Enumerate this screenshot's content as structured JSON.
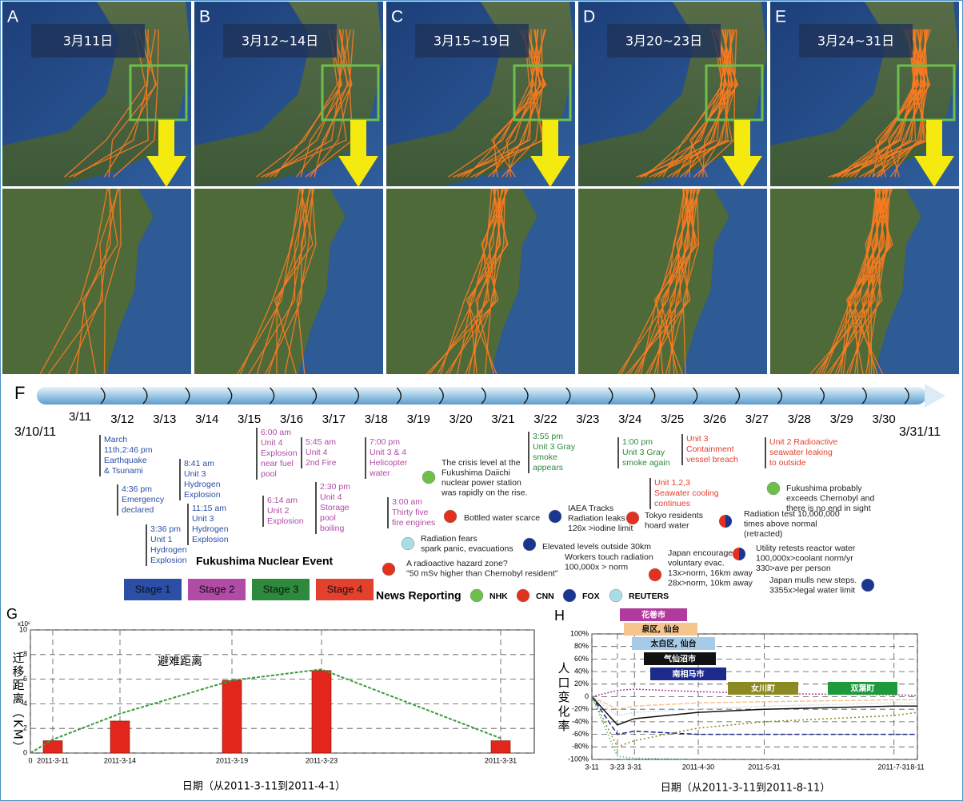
{
  "panels": [
    {
      "letter": "A",
      "date": "3月11日"
    },
    {
      "letter": "B",
      "date": "3月12~14日"
    },
    {
      "letter": "C",
      "date": "3月15~19日"
    },
    {
      "letter": "D",
      "date": "3月20~23日"
    },
    {
      "letter": "E",
      "date": "3月24~31日"
    }
  ],
  "timeline": {
    "letter": "F",
    "start": "3/10/11",
    "end": "3/31/11",
    "dates": [
      "3/11",
      "3/12",
      "3/13",
      "3/14",
      "3/15",
      "3/16",
      "3/17",
      "3/18",
      "3/19",
      "3/20",
      "3/21",
      "3/22",
      "3/23",
      "3/24",
      "3/25",
      "3/26",
      "3/27",
      "3/28",
      "3/29",
      "3/30"
    ],
    "title": "Fukushima Nuclear Event",
    "stages": [
      "Stage 1",
      "Stage 2",
      "Stage 3",
      "Stage 4"
    ],
    "stage_colors": [
      "#2b4ea6",
      "#b14ba6",
      "#2d8a3c",
      "#e4402e"
    ],
    "events": [
      {
        "stage": 0,
        "lines": [
          "March",
          "11th,2:46 pm",
          "Earthquake",
          "& Tsunami"
        ]
      },
      {
        "stage": 0,
        "lines": [
          "4:36 pm",
          "Emergency",
          "declared"
        ]
      },
      {
        "stage": 0,
        "lines": [
          "3:36 pm",
          "Unit 1",
          "Hydrogen",
          "Explosion"
        ]
      },
      {
        "stage": 0,
        "lines": [
          "8:41 am",
          "Unit 3",
          "Hydrogen",
          "Explosion"
        ]
      },
      {
        "stage": 0,
        "lines": [
          "11:15 am",
          "Unit 3",
          "Hydrogen",
          "Explosion"
        ]
      },
      {
        "stage": 1,
        "lines": [
          "6:00 am",
          "Unit 4",
          "Explosion",
          "near fuel",
          "pool"
        ]
      },
      {
        "stage": 1,
        "lines": [
          "6:14 am",
          "Unit 2",
          "Explosion"
        ]
      },
      {
        "stage": 1,
        "lines": [
          "5:45 am",
          "Unit 4",
          "2nd Fire"
        ]
      },
      {
        "stage": 1,
        "lines": [
          "2:30 pm",
          "Unit 4",
          "Storage",
          "pool",
          "boiling"
        ]
      },
      {
        "stage": 1,
        "lines": [
          "7:00 pm",
          "Unit 3 & 4",
          "Helicopter",
          "water"
        ]
      },
      {
        "stage": 1,
        "lines": [
          "3:00 am",
          "Thirty five",
          "fire engines"
        ]
      },
      {
        "stage": 2,
        "lines": [
          "3:55 pm",
          "Unit 3 Gray",
          "smoke",
          "appears"
        ]
      },
      {
        "stage": 2,
        "lines": [
          "1:00 pm",
          "Unit 3 Gray",
          "smoke again"
        ]
      },
      {
        "stage": 3,
        "lines": [
          "Unit 3",
          "Containment",
          "vessel breach"
        ]
      },
      {
        "stage": 3,
        "lines": [
          "Unit 2 Radioactive",
          "seawater leaking",
          "to outside"
        ]
      },
      {
        "stage": 3,
        "lines": [
          "Unit 1,2,3",
          "Seawater cooling",
          "continues"
        ]
      }
    ],
    "news_title": "News Reporting",
    "sources": [
      {
        "name": "NHK",
        "color": "#6cc04a"
      },
      {
        "name": "CNN",
        "color": "#e2321f"
      },
      {
        "name": "FOX",
        "color": "#1a3690"
      },
      {
        "name": "REUTERS",
        "color": "#a9dde6"
      }
    ],
    "news": [
      {
        "colors": [
          "#6cc04a"
        ],
        "lines": [
          "The crisis level at the",
          "Fukushima Daiichi",
          "nuclear power station",
          "was rapidly on the rise."
        ]
      },
      {
        "colors": [
          "#e2321f"
        ],
        "lines": [
          "Bottled water scarce"
        ]
      },
      {
        "colors": [
          "#1a3690"
        ],
        "lines": [
          "IAEA Tracks",
          "Radiation leaks",
          "126x >iodine limit"
        ]
      },
      {
        "colors": [
          "#e2321f"
        ],
        "lines": [
          "Tokyo residents",
          "hoard water"
        ]
      },
      {
        "colors": [
          "#6cc04a"
        ],
        "lines": [
          "Fukushima probably",
          "exceeds Chernobyl and",
          "there is no end in sight"
        ]
      },
      {
        "colors": [
          "#e2321f",
          "#1a3690"
        ],
        "lines": [
          "Radiation test 10,000,000",
          "times above normal",
          "(retracted)"
        ]
      },
      {
        "colors": [
          "#a9dde6"
        ],
        "lines": [
          "Radiation fears",
          "spark panic, evacuations"
        ]
      },
      {
        "colors": [
          "#1a3690"
        ],
        "lines": [
          "Elevated levels outside 30km"
        ]
      },
      {
        "colors": [
          "#e2321f"
        ],
        "lines": [
          "A radioactive hazard zone?",
          "\"50 mSv higher than Chernobyl resident\""
        ]
      },
      {
        "colors": [],
        "lines": [
          "Workers touch radiation",
          "100,000x > norm"
        ]
      },
      {
        "colors": [
          "#e2321f"
        ],
        "lines": [
          "Japan encourages",
          "voluntary evac.",
          "13x>norm, 16km away",
          "28x>norm, 10km away"
        ]
      },
      {
        "colors": [
          "#e2321f",
          "#1a3690"
        ],
        "lines": [
          "Utility retests reactor water",
          "100,000x>coolant norm/yr",
          "330>ave per person"
        ]
      },
      {
        "colors": [
          "#1a3690"
        ],
        "lines": [
          "Japan mulls new steps.",
          "3355x>legal water limit"
        ]
      }
    ]
  },
  "chart_data": [
    {
      "letter": "G",
      "type": "bar",
      "title": "避难距离",
      "ylabel": "迁移距离（KM）",
      "y_exponent": "x10⁶",
      "xlabel": "日期（从2011-3-11到2011-4-1）",
      "x": [
        1,
        4,
        9,
        13,
        21
      ],
      "values": [
        1.0,
        2.6,
        5.9,
        6.7,
        1.0
      ],
      "color": "#e3261b",
      "line": {
        "x": [
          0,
          1,
          4,
          9,
          13,
          21
        ],
        "values": [
          0,
          1.1,
          3.2,
          5.9,
          6.8,
          1.2
        ],
        "color": "#3c9a3c"
      },
      "xlim": [
        0,
        22.5
      ],
      "ylim": [
        0,
        10
      ],
      "xticks": [
        0,
        {
          "value": 1,
          "label": "2011-3-11"
        },
        {
          "value": 4,
          "label": "2011-3-14"
        },
        {
          "value": 9,
          "label": "2011-3-19"
        },
        {
          "value": 13,
          "label": "2011-3-23"
        },
        {
          "value": 21,
          "label": "2011-3-31"
        }
      ],
      "yticks": [
        0,
        2,
        4,
        6,
        8,
        10
      ],
      "grid": true
    },
    {
      "letter": "H",
      "type": "line",
      "ylabel": "人口变化率",
      "xlabel": "日期（从2011-3-11到2011-8-11）",
      "x": [
        0,
        12,
        20,
        50,
        81,
        142,
        153
      ],
      "xlim": [
        0,
        153
      ],
      "ylim": [
        -100,
        100
      ],
      "xticks": [
        {
          "value": 0,
          "label": "3-11"
        },
        {
          "value": 12,
          "label": "3-23"
        },
        {
          "value": 20,
          "label": "3-31"
        },
        {
          "value": 50,
          "label": "2011-4-30"
        },
        {
          "value": 81,
          "label": "2011-5-31"
        },
        {
          "value": 142,
          "label": "2011-7-31"
        },
        {
          "value": 153,
          "label": "8-11"
        }
      ],
      "yticks": [
        {
          "value": -100,
          "label": "-100%"
        },
        {
          "value": -80,
          "label": "-80%"
        },
        {
          "value": -60,
          "label": "-60%"
        },
        {
          "value": -40,
          "label": "-40%"
        },
        {
          "value": -20,
          "label": "-20%"
        },
        0,
        {
          "value": 20,
          "label": "20%"
        },
        {
          "value": 40,
          "label": "40%"
        },
        {
          "value": 60,
          "label": "60%"
        },
        {
          "value": 80,
          "label": "80%"
        },
        {
          "value": 100,
          "label": "100%"
        }
      ],
      "grid": true,
      "series": [
        {
          "name": "花巻市",
          "color": "#b23a9c",
          "values": [
            0,
            10,
            12,
            8,
            5,
            3,
            2
          ]
        },
        {
          "name": "泉区, 仙台",
          "color": "#f6c58e",
          "values": [
            0,
            -20,
            -15,
            -10,
            -8,
            -5,
            -5
          ]
        },
        {
          "name": "太白区, 仙台",
          "color": "#a6cbe8",
          "values": [
            0,
            -30,
            -25,
            -20,
            -15,
            -10,
            -10
          ]
        },
        {
          "name": "气仙沼市",
          "color": "#111111",
          "values": [
            0,
            -45,
            -35,
            -25,
            -20,
            -15,
            -15
          ]
        },
        {
          "name": "南相马市",
          "color": "#1b2a8c",
          "values": [
            0,
            -60,
            -55,
            -60,
            -60,
            -60,
            -60
          ]
        },
        {
          "name": "女川町",
          "color": "#8c8a22",
          "values": [
            0,
            -80,
            -70,
            -50,
            -40,
            -30,
            -25
          ]
        },
        {
          "name": "双葉町",
          "color": "#1c9a3c",
          "values": [
            0,
            -95,
            -98,
            -100,
            -100,
            -100,
            -100
          ]
        }
      ]
    }
  ]
}
